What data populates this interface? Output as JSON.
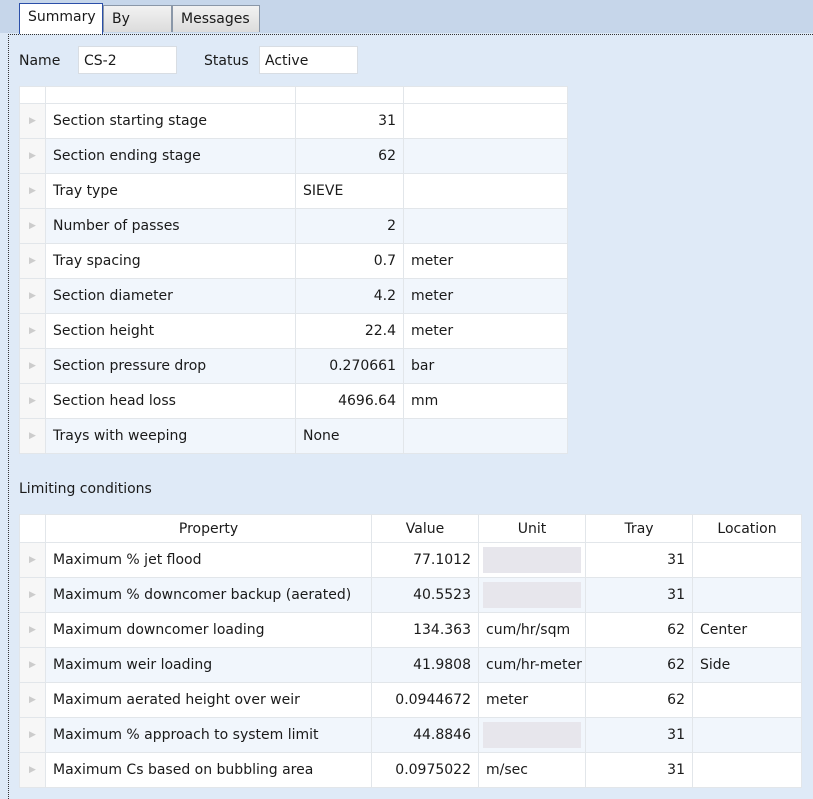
{
  "tabs": [
    "Summary",
    "By Tray",
    "Messages"
  ],
  "name_label": "Name",
  "name_value": "CS-2",
  "status_label": "Status",
  "status_value": "Active",
  "summary_rows": [
    [
      "Section starting stage",
      "31",
      ""
    ],
    [
      "Section ending stage",
      "62",
      ""
    ],
    [
      "Tray type",
      "SIEVE",
      ""
    ],
    [
      "Number of passes",
      "2",
      ""
    ],
    [
      "Tray spacing",
      "0.7",
      "meter"
    ],
    [
      "Section diameter",
      "4.2",
      "meter"
    ],
    [
      "Section height",
      "22.4",
      "meter"
    ],
    [
      "Section pressure drop",
      "0.270661",
      "bar"
    ],
    [
      "Section head loss",
      "4696.64",
      "mm"
    ],
    [
      "Trays with weeping",
      "None",
      ""
    ]
  ],
  "limiting_title": "Limiting conditions",
  "limiting_headers": [
    "Property",
    "Value",
    "Unit",
    "Tray",
    "Location"
  ],
  "limiting_rows": [
    [
      "Maximum % jet flood",
      "77.1012",
      "",
      "31",
      ""
    ],
    [
      "Maximum % downcomer backup (aerated)",
      "40.5523",
      "",
      "31",
      ""
    ],
    [
      "Maximum downcomer loading",
      "134.363",
      "cum/hr/sqm",
      "62",
      "Center"
    ],
    [
      "Maximum weir loading",
      "41.9808",
      "cum/hr-meter",
      "62",
      "Side"
    ],
    [
      "Maximum aerated height over weir",
      "0.0944672",
      "meter",
      "62",
      ""
    ],
    [
      "Maximum % approach to system limit",
      "44.8846",
      "",
      "31",
      ""
    ],
    [
      "Maximum Cs based on bubbling area",
      "0.0975022",
      "m/sec",
      "31",
      ""
    ]
  ]
}
